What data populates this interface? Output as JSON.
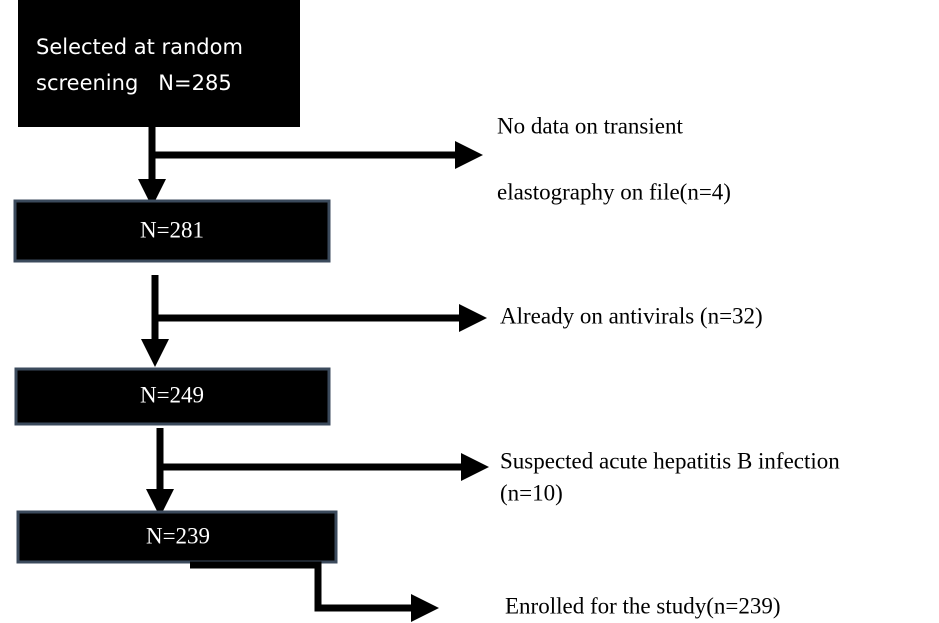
{
  "nodes": [
    {
      "lines": [
        "Selected at random",
        "screening   N=285"
      ]
    },
    {
      "lines": [
        "N=281"
      ]
    },
    {
      "lines": [
        "N=249"
      ]
    },
    {
      "lines": [
        "N=239"
      ]
    }
  ],
  "exclusions": [
    {
      "lines": [
        "No data on transient",
        "elastography on file(n=4)"
      ]
    },
    {
      "lines": [
        "Already on antivirals (n=32)"
      ]
    },
    {
      "lines": [
        "Suspected acute hepatitis B infection",
        "(n=10)"
      ]
    },
    {
      "lines": [
        "Enrolled for the study(n=239)"
      ]
    }
  ]
}
